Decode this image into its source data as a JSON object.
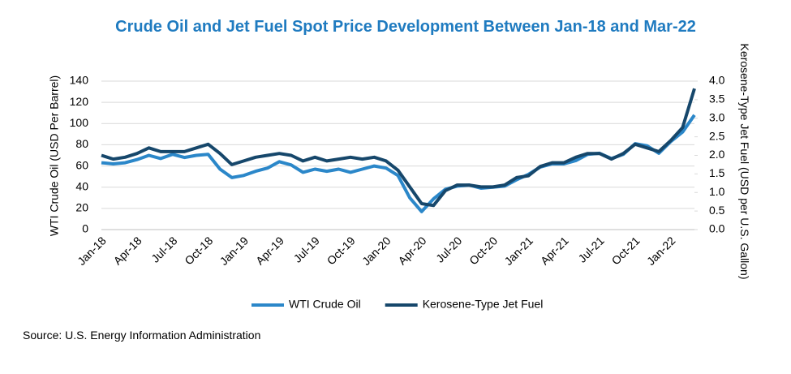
{
  "chart_data": {
    "type": "line",
    "title": "Crude Oil and Jet Fuel Spot Price Development Between Jan-18 and Mar-22",
    "y_label": "WTI Crude Oil (USD Per Barrel)",
    "y2_label": "Kerosene-Type Jet Fuel (USD per U.S. Gallon)",
    "source": "Source: U.S. Energy Information Administration",
    "categories": [
      "Jan-18",
      null,
      null,
      "Apr-18",
      null,
      null,
      "Jul-18",
      null,
      null,
      "Oct-18",
      null,
      null,
      "Jan-19",
      null,
      null,
      "Apr-19",
      null,
      null,
      "Jul-19",
      null,
      null,
      "Oct-19",
      null,
      null,
      "Jan-20",
      null,
      null,
      "Apr-20",
      null,
      null,
      "Jul-20",
      null,
      null,
      "Oct-20",
      null,
      null,
      "Jan-21",
      null,
      null,
      "Apr-21",
      null,
      null,
      "Jul-21",
      null,
      null,
      "Oct-21",
      null,
      null,
      "Jan-22",
      null,
      null
    ],
    "ylim": [
      0,
      140
    ],
    "yticks": [
      0,
      20,
      40,
      60,
      80,
      100,
      120,
      140
    ],
    "y2lim": [
      0,
      4
    ],
    "y2ticks": [
      {
        "value": 0,
        "label": "0.0"
      },
      0.5,
      {
        "value": 1,
        "label": "1.0"
      },
      1.5,
      {
        "value": 2,
        "label": "2.0"
      },
      2.5,
      {
        "value": 3,
        "label": "3.0"
      },
      3.5,
      {
        "value": 4,
        "label": "4.0"
      }
    ],
    "grid": true,
    "legend": "bottom",
    "series": [
      {
        "name": "WTI Crude Oil",
        "color": "#2b87c9",
        "values": [
          63,
          62,
          63,
          66,
          70,
          67,
          71,
          68,
          70,
          71,
          57,
          49,
          51,
          55,
          58,
          64,
          61,
          54,
          57,
          55,
          57,
          54,
          57,
          60,
          58,
          51,
          30,
          17,
          29,
          38,
          41,
          42,
          39,
          40,
          41,
          47,
          52,
          59,
          62,
          62,
          65,
          71,
          72,
          67,
          71,
          81,
          79,
          72,
          83,
          92,
          108
        ]
      },
      {
        "name": "Kerosene-Type Jet Fuel",
        "color": "#16476b",
        "axis": "y2",
        "values": [
          2.0,
          1.9,
          1.95,
          2.05,
          2.2,
          2.1,
          2.1,
          2.1,
          2.2,
          2.3,
          2.05,
          1.75,
          1.85,
          1.95,
          2.0,
          2.05,
          2.0,
          1.85,
          1.95,
          1.85,
          1.9,
          1.95,
          1.9,
          1.95,
          1.85,
          1.6,
          1.15,
          0.7,
          0.65,
          1.05,
          1.2,
          1.2,
          1.15,
          1.15,
          1.2,
          1.4,
          1.45,
          1.7,
          1.8,
          1.8,
          1.95,
          2.05,
          2.05,
          1.9,
          2.05,
          2.3,
          2.2,
          2.1,
          2.4,
          2.75,
          3.8
        ]
      }
    ]
  }
}
